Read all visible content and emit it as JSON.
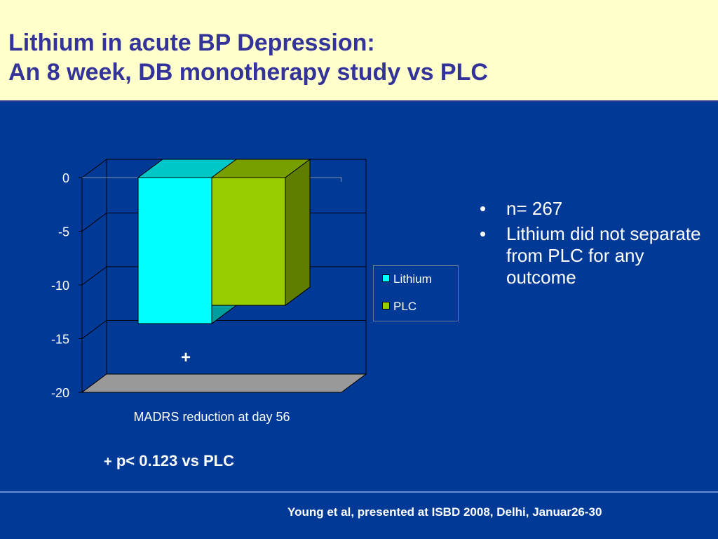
{
  "header": {
    "title_line1": "Lithium in acute BP Depression:",
    "title_line2": "An 8 week, DB  monotherapy study vs PLC"
  },
  "chart_data": {
    "type": "bar",
    "categories": [
      "MADRS reduction at day 56"
    ],
    "series": [
      {
        "name": "Lithium",
        "values": [
          -13.6
        ],
        "color": "#00ffff"
      },
      {
        "name": "PLC",
        "values": [
          -11.9
        ],
        "color": "#99cc00"
      }
    ],
    "xlabel": "MADRS reduction at day 56",
    "ylim": [
      -20,
      0
    ],
    "yticks": [
      0,
      -5,
      -10,
      -15,
      -20
    ],
    "ytick_labels": [
      "0",
      "-5",
      "-10",
      "-15",
      "-20"
    ],
    "annotation": "+",
    "grid": true,
    "legend_position": "right",
    "style": "3d"
  },
  "legend": {
    "items": [
      {
        "label": "Lithium",
        "color": "#00ffff"
      },
      {
        "label": "PLC",
        "color": "#99cc00"
      }
    ]
  },
  "bullets": [
    "n= 267",
    "Lithium did not separate from PLC for any outcome"
  ],
  "footnote": {
    "plus": "+",
    "text": "p< 0.123 vs PLC"
  },
  "citation": "Young et al, presented at ISBD 2008, Delhi, Januar26-30"
}
